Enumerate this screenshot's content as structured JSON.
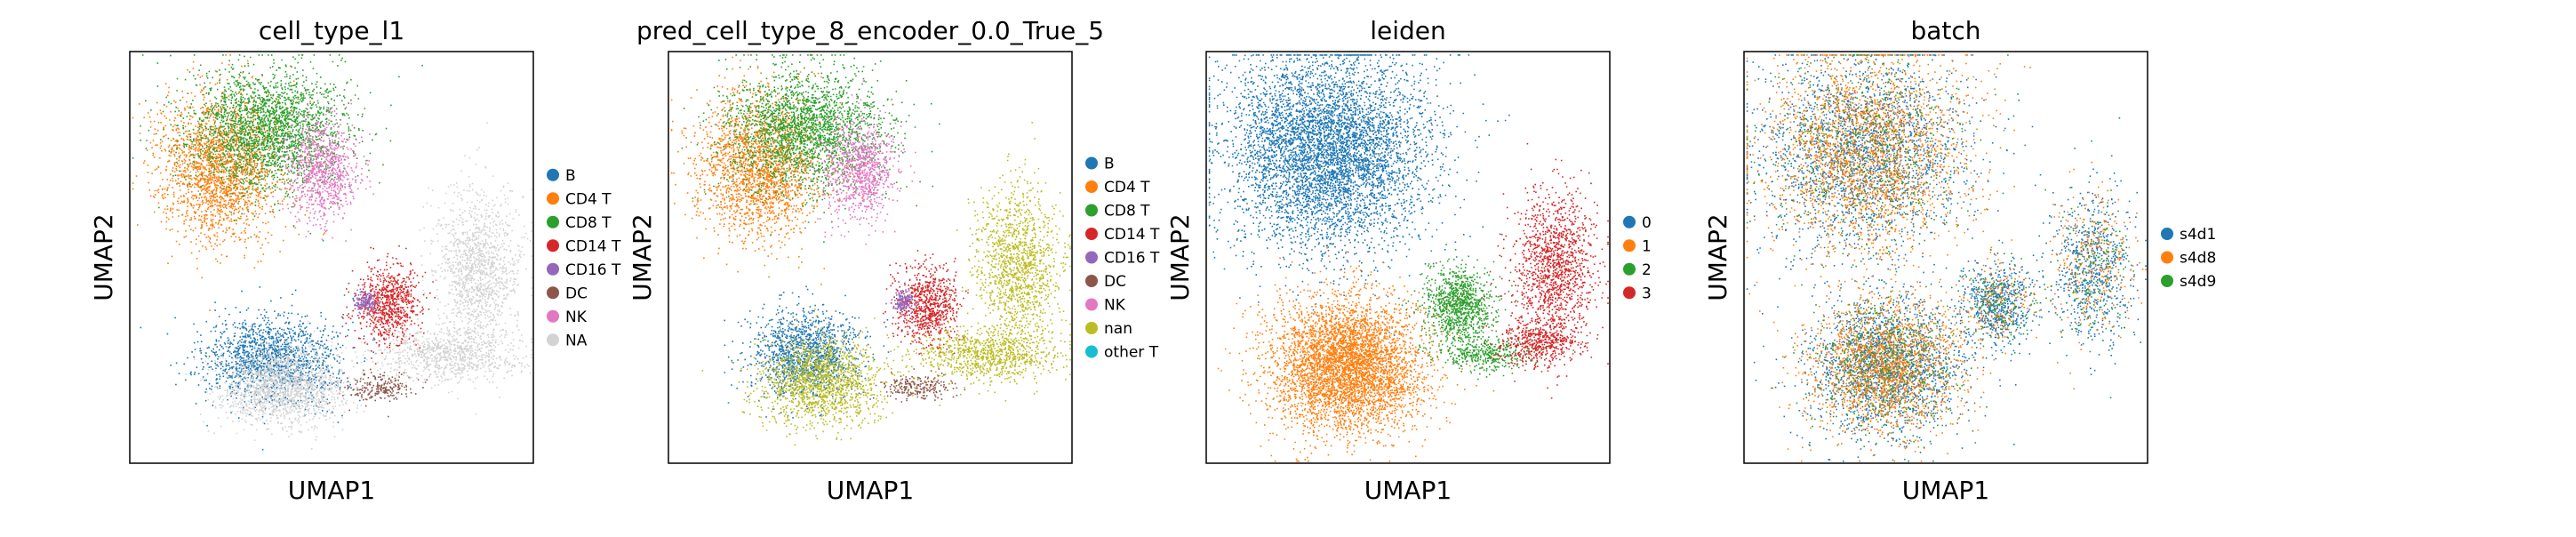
{
  "chart_data": [
    {
      "type": "scatter",
      "title": "cell_type_l1",
      "xlabel": "UMAP1",
      "ylabel": "UMAP2",
      "grid": false,
      "legend": "right",
      "ticks": "none",
      "series": [
        {
          "name": "B",
          "color": "#1f77b4",
          "clusters": [
            [
              -1.2,
              -1.1,
              0.65,
              0.4,
              1600
            ]
          ]
        },
        {
          "name": "CD4 T",
          "color": "#ff7f0e",
          "clusters": [
            [
              -2.2,
              2.4,
              0.6,
              0.65,
              2200
            ]
          ]
        },
        {
          "name": "CD8 T",
          "color": "#2ca02c",
          "clusters": [
            [
              -1.3,
              3.1,
              0.8,
              0.55,
              2400
            ]
          ]
        },
        {
          "name": "CD14 T",
          "color": "#d62728",
          "clusters": [
            [
              1.1,
              -0.1,
              0.3,
              0.35,
              800
            ]
          ]
        },
        {
          "name": "CD16 T",
          "color": "#9467bd",
          "clusters": [
            [
              0.65,
              -0.05,
              0.1,
              0.1,
              150
            ]
          ]
        },
        {
          "name": "DC",
          "color": "#8c564b",
          "clusters": [
            [
              0.9,
              -1.6,
              0.35,
              0.12,
              220
            ]
          ]
        },
        {
          "name": "NK",
          "color": "#e377c2",
          "clusters": [
            [
              -0.2,
              2.35,
              0.35,
              0.45,
              900
            ]
          ]
        },
        {
          "name": "NA",
          "color": "#d3d3d3",
          "clusters": [
            [
              -1.0,
              -1.6,
              0.6,
              0.35,
              1600
            ],
            [
              2.9,
              0.6,
              0.4,
              0.7,
              1300
            ],
            [
              2.3,
              -1.0,
              0.7,
              0.25,
              900
            ]
          ]
        }
      ]
    },
    {
      "type": "scatter",
      "title": "pred_cell_type_8_encoder_0.0_True_5",
      "xlabel": "UMAP1",
      "ylabel": "UMAP2",
      "grid": false,
      "legend": "right",
      "ticks": "none",
      "series": [
        {
          "name": "B",
          "color": "#1f77b4",
          "clusters": [
            [
              -1.3,
              -1.0,
              0.55,
              0.4,
              1400
            ]
          ]
        },
        {
          "name": "CD4 T",
          "color": "#ff7f0e",
          "clusters": [
            [
              -2.2,
              2.4,
              0.6,
              0.65,
              2100
            ]
          ]
        },
        {
          "name": "CD8 T",
          "color": "#2ca02c",
          "clusters": [
            [
              -1.3,
              3.1,
              0.8,
              0.55,
              2300
            ]
          ]
        },
        {
          "name": "CD14 T",
          "color": "#d62728",
          "clusters": [
            [
              1.1,
              -0.1,
              0.3,
              0.35,
              800
            ]
          ]
        },
        {
          "name": "CD16 T",
          "color": "#9467bd",
          "clusters": [
            [
              0.65,
              -0.05,
              0.1,
              0.1,
              150
            ]
          ]
        },
        {
          "name": "DC",
          "color": "#8c564b",
          "clusters": [
            [
              0.9,
              -1.6,
              0.35,
              0.12,
              220
            ]
          ]
        },
        {
          "name": "NK",
          "color": "#e377c2",
          "clusters": [
            [
              -0.2,
              2.35,
              0.35,
              0.45,
              900
            ]
          ]
        },
        {
          "name": "nan",
          "color": "#bcbd22",
          "clusters": [
            [
              -1.0,
              -1.5,
              0.6,
              0.4,
              1500
            ],
            [
              2.9,
              0.6,
              0.4,
              0.7,
              1300
            ],
            [
              2.3,
              -1.0,
              0.7,
              0.25,
              900
            ]
          ]
        },
        {
          "name": "other T",
          "color": "#17becf",
          "clusters": []
        }
      ]
    },
    {
      "type": "scatter",
      "title": "leiden",
      "xlabel": "UMAP1",
      "ylabel": "UMAP2",
      "grid": false,
      "legend": "right",
      "ticks": "none",
      "series": [
        {
          "name": "0",
          "color": "#1f77b4",
          "clusters": [
            [
              -1.6,
              2.7,
              1.0,
              0.9,
              5500
            ]
          ]
        },
        {
          "name": "1",
          "color": "#ff7f0e",
          "clusters": [
            [
              -1.2,
              -1.2,
              0.75,
              0.6,
              4500
            ]
          ]
        },
        {
          "name": "2",
          "color": "#2ca02c",
          "clusters": [
            [
              1.0,
              -0.1,
              0.35,
              0.35,
              1000
            ],
            [
              1.5,
              -1.0,
              0.5,
              0.15,
              400
            ]
          ]
        },
        {
          "name": "3",
          "color": "#d62728",
          "clusters": [
            [
              2.9,
              0.6,
              0.4,
              0.7,
              1300
            ],
            [
              2.6,
              -0.8,
              0.4,
              0.2,
              500
            ]
          ]
        }
      ]
    },
    {
      "type": "scatter",
      "title": "batch",
      "xlabel": "UMAP1",
      "ylabel": "UMAP2",
      "grid": false,
      "legend": "right",
      "ticks": "none",
      "series": [
        {
          "name": "s4d1",
          "color": "#1f77b4",
          "clusters": [
            [
              -1.6,
              2.7,
              1.0,
              0.9,
              2200
            ],
            [
              -1.2,
              -1.2,
              0.75,
              0.6,
              1900
            ],
            [
              1.0,
              -0.1,
              0.35,
              0.35,
              650
            ],
            [
              2.9,
              0.6,
              0.4,
              0.7,
              700
            ]
          ]
        },
        {
          "name": "s4d8",
          "color": "#ff7f0e",
          "clusters": [
            [
              -1.6,
              2.7,
              1.0,
              0.9,
              2400
            ],
            [
              -1.2,
              -1.2,
              0.75,
              0.6,
              1900
            ],
            [
              1.0,
              -0.1,
              0.35,
              0.35,
              200
            ],
            [
              2.9,
              0.6,
              0.4,
              0.7,
              300
            ]
          ]
        },
        {
          "name": "s4d9",
          "color": "#2ca02c",
          "clusters": [
            [
              -1.6,
              2.7,
              1.0,
              0.9,
              500
            ],
            [
              -1.2,
              -1.2,
              0.75,
              0.6,
              500
            ],
            [
              1.0,
              -0.1,
              0.35,
              0.35,
              120
            ],
            [
              2.9,
              0.6,
              0.4,
              0.7,
              150
            ]
          ]
        }
      ]
    }
  ]
}
